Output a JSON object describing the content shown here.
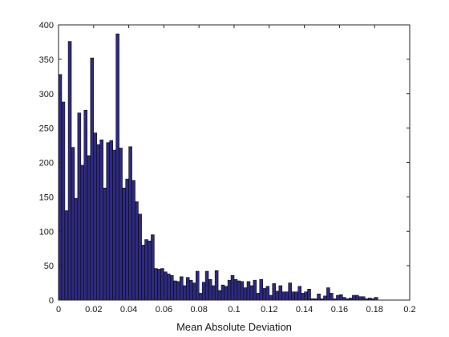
{
  "chart_data": {
    "type": "bar",
    "title": "",
    "xlabel": "Mean Absolute Deviation",
    "ylabel": "",
    "xlim": [
      0,
      0.2
    ],
    "ylim": [
      0,
      400
    ],
    "xticks": [
      "0",
      "0.02",
      "0.04",
      "0.06",
      "0.08",
      "0.1",
      "0.12",
      "0.14",
      "0.16",
      "0.18",
      "0.2"
    ],
    "yticks": [
      "0",
      "50",
      "100",
      "150",
      "200",
      "250",
      "300",
      "350",
      "400"
    ],
    "bin_width": 0.00182,
    "bar_color": "#2e2a7c",
    "edge_color": "#000000",
    "grid": false,
    "series": [
      {
        "bin_starts": [
          0.0,
          0.0018,
          0.0036,
          0.0055,
          0.0073,
          0.0091,
          0.0109,
          0.0127,
          0.0145,
          0.0164,
          0.0182,
          0.02,
          0.0218,
          0.0236,
          0.0255,
          0.0273,
          0.0291,
          0.0309,
          0.0327,
          0.0345,
          0.0364,
          0.0382,
          0.04,
          0.0418,
          0.0436,
          0.0455,
          0.0473,
          0.0491,
          0.0509,
          0.0527,
          0.0545,
          0.0564,
          0.0582,
          0.06,
          0.0618,
          0.0636,
          0.0655,
          0.0673,
          0.0691,
          0.0709,
          0.0727,
          0.0745,
          0.0764,
          0.0782,
          0.08,
          0.0818,
          0.0836,
          0.0855,
          0.0873,
          0.0891,
          0.0909,
          0.0927,
          0.0945,
          0.0964,
          0.0982,
          0.1,
          0.1018,
          0.1036,
          0.1055,
          0.1073,
          0.1091,
          0.1109,
          0.1127,
          0.1145,
          0.1164,
          0.1182,
          0.12,
          0.1218,
          0.1236,
          0.1255,
          0.1273,
          0.1291,
          0.1309,
          0.1327,
          0.1345,
          0.1364,
          0.1382,
          0.14,
          0.1418,
          0.1436,
          0.1455,
          0.1473,
          0.1491,
          0.1509,
          0.1527,
          0.1545,
          0.1564,
          0.1582,
          0.16,
          0.1618,
          0.1636,
          0.1655,
          0.1673,
          0.1691,
          0.1709,
          0.1727,
          0.1745,
          0.1764,
          0.1782,
          0.18
        ],
        "values": [
          328,
          288,
          130,
          376,
          222,
          148,
          272,
          196,
          276,
          210,
          352,
          243,
          226,
          233,
          163,
          229,
          232,
          218,
          387,
          221,
          163,
          176,
          223,
          174,
          143,
          125,
          80,
          88,
          86,
          95,
          46,
          45,
          46,
          41,
          38,
          36,
          28,
          27,
          34,
          21,
          33,
          29,
          25,
          42,
          10,
          26,
          42,
          30,
          21,
          43,
          14,
          22,
          20,
          29,
          36,
          30,
          28,
          27,
          18,
          27,
          21,
          29,
          10,
          30,
          17,
          20,
          7,
          24,
          13,
          21,
          12,
          12,
          25,
          12,
          12,
          20,
          10,
          12,
          16,
          2,
          2,
          9,
          2,
          6,
          18,
          10,
          2,
          7,
          8,
          4,
          2,
          3,
          7,
          7,
          5,
          5,
          2,
          3,
          2,
          4
        ]
      }
    ]
  }
}
